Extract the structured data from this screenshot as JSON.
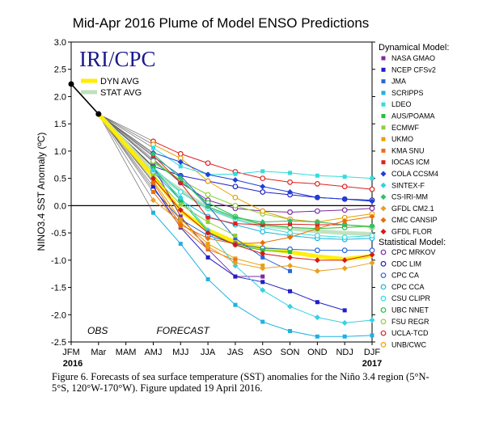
{
  "chart_data": {
    "type": "line",
    "title": "Mid-Apr 2016 Plume of Model ENSO Predictions",
    "ylabel": "NINO3.4 SST Anomaly (ºC)",
    "ylim": [
      -2.5,
      3.0
    ],
    "yticks": [
      "3.0",
      "2.5",
      "2.0",
      "1.5",
      "1.0",
      "0.5",
      "0.0",
      "-0.5",
      "-1.0",
      "-1.5",
      "-2.0",
      "-2.5"
    ],
    "yticks_values": [
      3.0,
      2.5,
      2.0,
      1.5,
      1.0,
      0.5,
      0.0,
      -0.5,
      -1.0,
      -1.5,
      -2.0,
      -2.5
    ],
    "categories": [
      "JFM",
      "Mar",
      "MAM",
      "AMJ",
      "MJJ",
      "JJA",
      "JAS",
      "ASO",
      "SON",
      "OND",
      "NDJ",
      "DJF"
    ],
    "year_start": "2016",
    "year_end": "2017",
    "obs_label": "OBS",
    "forecast_label": "FORECAST",
    "logo": "IRI/CPC",
    "observed": [
      2.23,
      1.68
    ],
    "dyn_avg": {
      "name": "DYN AVG",
      "color": "#ffee00",
      "values": [
        0.54,
        -0.1,
        -0.45,
        -0.67,
        -0.78,
        -0.85,
        -0.93,
        -0.98,
        -0.92
      ]
    },
    "stat_avg": {
      "name": "STAT AVG",
      "color": "#bfe0bf",
      "values": [
        0.62,
        0.28,
        -0.05,
        -0.23,
        -0.35,
        -0.42,
        -0.47,
        -0.5,
        -0.52
      ]
    },
    "dynamical_title": "Dynamical Model:",
    "statistical_title": "Statistical Model:",
    "dynamical_models": [
      {
        "name": "NASA GMAO",
        "color": "#7a2ca0",
        "marker": "square",
        "values": [
          0.72,
          -0.2,
          -0.8,
          -1.3,
          -1.3,
          null,
          null,
          null,
          null
        ]
      },
      {
        "name": "NCEP CFSv2",
        "color": "#1f1fc8",
        "marker": "square",
        "values": [
          0.35,
          -0.4,
          -0.95,
          -1.3,
          -1.4,
          -1.57,
          -1.77,
          -1.92,
          null
        ]
      },
      {
        "name": "JMA",
        "color": "#2b66d9",
        "marker": "square",
        "values": [
          0.9,
          0.55,
          0.0,
          -0.6,
          -0.95,
          -1.2,
          null,
          null,
          null
        ]
      },
      {
        "name": "SCRIPPS",
        "color": "#1fb0e0",
        "marker": "square",
        "values": [
          -0.13,
          -0.7,
          -1.35,
          -1.82,
          -2.13,
          -2.3,
          -2.4,
          -2.4,
          -2.38
        ]
      },
      {
        "name": "LDEO",
        "color": "#33dcdc",
        "marker": "square",
        "values": [
          1.06,
          0.72,
          0.57,
          0.58,
          0.63,
          0.6,
          0.55,
          0.53,
          0.5
        ]
      },
      {
        "name": "AUS/POAMA",
        "color": "#22c040",
        "marker": "square",
        "values": [
          0.7,
          0.1,
          -0.48,
          -0.72,
          -0.82,
          -0.85,
          null,
          null,
          null
        ]
      },
      {
        "name": "ECMWF",
        "color": "#8fd038",
        "marker": "square",
        "values": [
          0.55,
          0.02,
          -0.3,
          -0.55,
          null,
          null,
          null,
          null,
          null
        ]
      },
      {
        "name": "UKMO",
        "color": "#e8a000",
        "marker": "square",
        "values": [
          0.45,
          -0.25,
          -0.7,
          -0.97,
          -1.1,
          null,
          null,
          null,
          null
        ]
      },
      {
        "name": "KMA SNU",
        "color": "#e8701a",
        "marker": "square",
        "values": [
          0.25,
          -0.38,
          -0.8,
          -1.0,
          null,
          null,
          null,
          null,
          null
        ]
      },
      {
        "name": "IOCAS ICM",
        "color": "#e02020",
        "marker": "square",
        "values": [
          0.92,
          0.42,
          -0.22,
          -0.33,
          -0.35,
          -0.34,
          -0.35,
          -0.35,
          null
        ]
      },
      {
        "name": "COLA CCSM4",
        "color": "#1f3fd9",
        "marker": "diamond",
        "values": [
          0.97,
          0.8,
          0.57,
          0.47,
          0.35,
          0.25,
          0.15,
          0.12,
          0.08
        ]
      },
      {
        "name": "SINTEX-F",
        "color": "#38d0e0",
        "marker": "diamond",
        "values": [
          0.65,
          0.15,
          -0.45,
          -1.1,
          -1.55,
          -1.85,
          -2.05,
          -2.15,
          -2.1
        ]
      },
      {
        "name": "CS-IRI-MM",
        "color": "#30c070",
        "marker": "diamond",
        "values": [
          0.95,
          0.5,
          -0.02,
          -0.22,
          -0.3,
          -0.28,
          -0.3,
          -0.35,
          -0.38
        ]
      },
      {
        "name": "GFDL CM2.1",
        "color": "#e8a020",
        "marker": "diamond",
        "values": [
          0.1,
          -0.3,
          -0.75,
          -1.05,
          -1.15,
          -1.1,
          -1.2,
          -1.15,
          -1.05
        ]
      },
      {
        "name": "CMC CANSIP",
        "color": "#e87000",
        "marker": "diamond",
        "values": [
          0.42,
          -0.35,
          -0.6,
          -0.7,
          -0.68,
          -0.58,
          -0.42,
          -0.28,
          -0.2
        ]
      },
      {
        "name": "GFDL FLOR",
        "color": "#d81818",
        "marker": "diamond",
        "values": [
          0.5,
          -0.08,
          -0.5,
          -0.72,
          -0.88,
          -0.95,
          -1.0,
          -1.0,
          -0.9
        ]
      }
    ],
    "statistical_models": [
      {
        "name": "CPC MRKOV",
        "color": "#7a2ca0",
        "marker": "circle",
        "values": [
          0.85,
          0.42,
          0.1,
          -0.05,
          -0.1,
          -0.12,
          -0.1,
          -0.08,
          -0.05
        ]
      },
      {
        "name": "CDC LIM",
        "color": "#1f1fc8",
        "marker": "circle",
        "values": [
          0.72,
          0.55,
          0.45,
          0.35,
          0.25,
          0.2,
          0.15,
          0.12,
          0.1
        ]
      },
      {
        "name": "CPC CA",
        "color": "#2b66d9",
        "marker": "circle",
        "values": [
          0.3,
          -0.25,
          -0.55,
          -0.7,
          -0.78,
          -0.8,
          -0.82,
          -0.82,
          -0.82
        ]
      },
      {
        "name": "CPC CCA",
        "color": "#1fb0e0",
        "marker": "circle",
        "values": [
          0.62,
          0.1,
          -0.2,
          -0.35,
          -0.48,
          -0.55,
          -0.6,
          -0.62,
          -0.6
        ]
      },
      {
        "name": "CSU CLIPR",
        "color": "#33dcdc",
        "marker": "circle",
        "values": [
          0.7,
          0.25,
          -0.05,
          -0.25,
          -0.4,
          -0.5,
          -0.55,
          -0.58,
          -0.55
        ]
      },
      {
        "name": "UBC NNET",
        "color": "#22c040",
        "marker": "circle",
        "values": [
          0.8,
          0.45,
          0.05,
          -0.2,
          -0.35,
          -0.4,
          -0.42,
          -0.4,
          -0.38
        ]
      },
      {
        "name": "FSU REGR",
        "color": "#8fd038",
        "marker": "circle",
        "values": [
          0.82,
          0.47,
          0.2,
          0.0,
          -0.15,
          -0.25,
          -0.3,
          -0.35,
          -0.4
        ]
      },
      {
        "name": "UCLA-TCD",
        "color": "#e02020",
        "marker": "circle",
        "values": [
          1.18,
          0.95,
          0.78,
          0.62,
          0.5,
          0.43,
          0.4,
          0.35,
          0.3
        ]
      },
      {
        "name": "UNB/CWC",
        "color": "#e8a000",
        "marker": "circle",
        "values": [
          1.12,
          0.87,
          0.45,
          0.15,
          -0.1,
          -0.25,
          -0.3,
          -0.22,
          -0.15
        ]
      }
    ]
  },
  "caption": "Figure 6. Forecasts of sea surface temperature (SST) anomalies for the Niño 3.4 region (5°N-5°S, 120°W-170°W). Figure updated 19 April 2016."
}
